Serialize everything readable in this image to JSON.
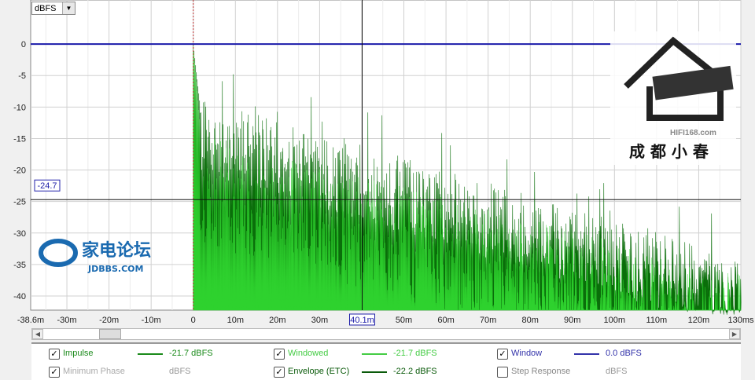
{
  "unit_select": {
    "value": "dBFS"
  },
  "cursor": {
    "x_label": "40.1m",
    "y_label": "-24.7"
  },
  "chart_data": {
    "type": "line",
    "xlabel": "",
    "ylabel": "",
    "xlim": [
      -38.6,
      130
    ],
    "ylim": [
      -42.25,
      7
    ],
    "x_unit": "ms",
    "x_ticks": [
      {
        "v": -38.6,
        "l": "-38.6m"
      },
      {
        "v": -30,
        "l": "-30m"
      },
      {
        "v": -20,
        "l": "-20m"
      },
      {
        "v": -10,
        "l": "-10m"
      },
      {
        "v": 0,
        "l": "0"
      },
      {
        "v": 10,
        "l": "10m"
      },
      {
        "v": 20,
        "l": "20m"
      },
      {
        "v": 30,
        "l": "30m"
      },
      {
        "v": 50,
        "l": "50m"
      },
      {
        "v": 60,
        "l": "60m"
      },
      {
        "v": 70,
        "l": "70m"
      },
      {
        "v": 80,
        "l": "80m"
      },
      {
        "v": 90,
        "l": "90m"
      },
      {
        "v": 100,
        "l": "100m"
      },
      {
        "v": 110,
        "l": "110m"
      },
      {
        "v": 120,
        "l": "120m"
      },
      {
        "v": 130,
        "l": "130ms"
      }
    ],
    "y_ticks": [
      0,
      -5,
      -10,
      -15,
      -20,
      -25,
      -30,
      -35,
      -40
    ],
    "grid": true,
    "reference_line_dbfs": 0,
    "cursor_x_ms": 40.1,
    "cursor_y_dbfs": -24.7,
    "impulse_start_ms": 0,
    "peak_dbfs": 0,
    "series": [
      {
        "name": "Envelope (ETC)",
        "color": "#0a6e0a",
        "decay_db_per_ms": -0.26,
        "level_at_5ms": -15,
        "level_at_120ms": -38
      },
      {
        "name": "Windowed",
        "color": "#33dd33",
        "decay_db_per_ms": -0.26,
        "level_at_5ms": -22,
        "level_at_120ms": -42
      },
      {
        "name": "Window",
        "color": "#1a1aaa",
        "level": 0
      }
    ]
  },
  "legend": {
    "rows": [
      [
        {
          "checked": true,
          "label": "Impulse",
          "value": "-21.7 dBFS",
          "color": "#1a8a1a"
        },
        {
          "checked": true,
          "label": "Windowed",
          "value": "-21.7 dBFS",
          "color": "#44cc44"
        },
        {
          "checked": true,
          "label": "Window",
          "value": "0.0 dBFS",
          "color": "#3333aa"
        }
      ],
      [
        {
          "checked": true,
          "label": "Minimum Phase",
          "value": "dBFS",
          "color": "#aaaaaa"
        },
        {
          "checked": true,
          "label": "Envelope (ETC)",
          "value": "-22.2 dBFS",
          "color": "#0a5a0a"
        },
        {
          "checked": false,
          "label": "Step Response",
          "value": "dBFS",
          "color": "#888888"
        }
      ]
    ]
  },
  "watermarks": {
    "left": "家电论坛 JDBBS.COM",
    "right": "成都小春 HIFI168.com"
  }
}
